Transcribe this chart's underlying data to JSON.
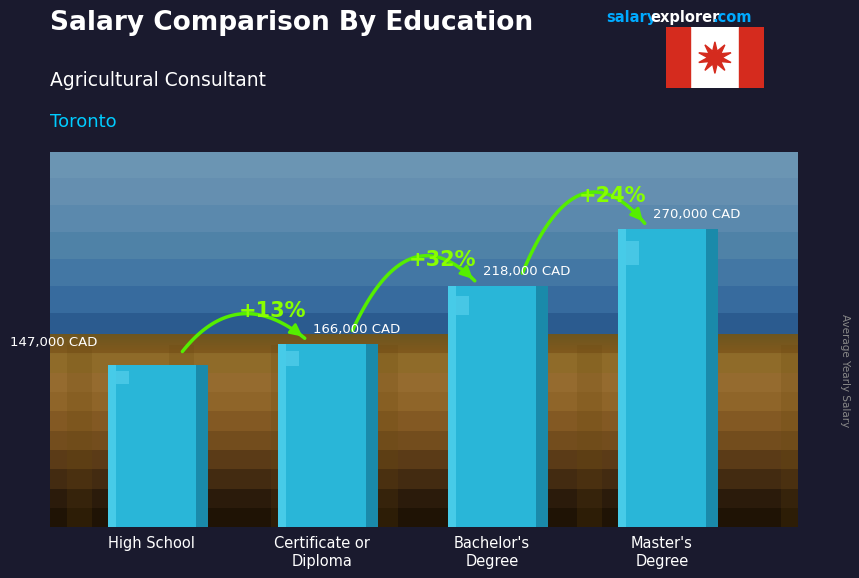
{
  "title_salary": "Salary Comparison By Education",
  "subtitle": "Agricultural Consultant",
  "city": "Toronto",
  "watermark_salary": "salary",
  "watermark_explorer": "explorer",
  "watermark_com": ".com",
  "ylabel": "Average Yearly Salary",
  "categories": [
    "High School",
    "Certificate or\nDiploma",
    "Bachelor's\nDegree",
    "Master's\nDegree"
  ],
  "values": [
    147000,
    166000,
    218000,
    270000
  ],
  "labels": [
    "147,000 CAD",
    "166,000 CAD",
    "218,000 CAD",
    "270,000 CAD"
  ],
  "label_positions": [
    "left",
    "right",
    "right",
    "right"
  ],
  "pct_changes": [
    "+13%",
    "+32%",
    "+24%"
  ],
  "bar_color_main": "#29b6d8",
  "bar_color_dark": "#1a8aaa",
  "bar_color_light": "#55d4f0",
  "bar_color_top": "#40cce8",
  "arrow_color": "#55ee00",
  "title_color": "#ffffff",
  "subtitle_color": "#ffffff",
  "city_color": "#00ccff",
  "label_color": "#ffffff",
  "pct_color": "#88ff00",
  "watermark_salary_color": "#00aaff",
  "watermark_com_color": "#00aaff",
  "rotated_label_color": "#999999"
}
